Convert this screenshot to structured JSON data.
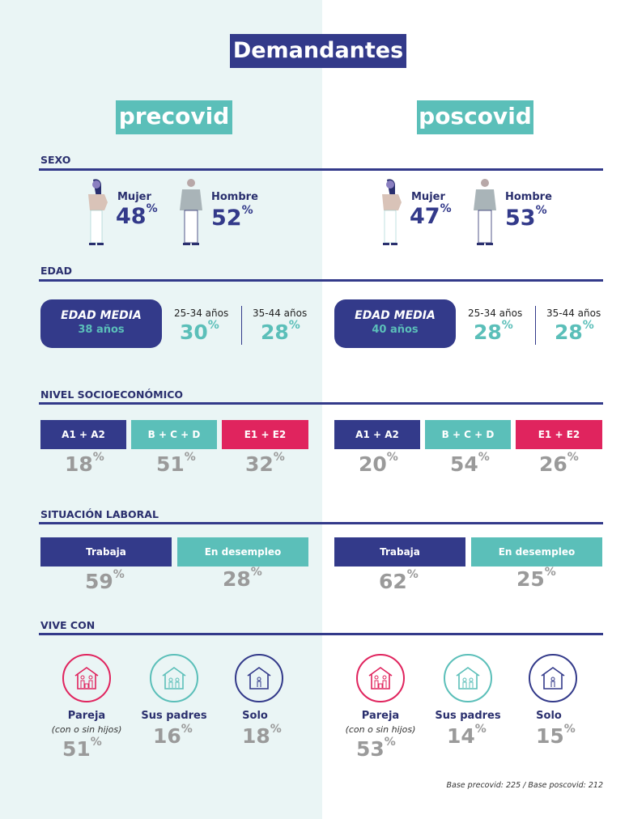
{
  "title": "Demandantes",
  "sections": {
    "sexo": "SEXO",
    "edad": "EDAD",
    "nse": "NIVEL SOCIOECONÓMICO",
    "laboral": "SITUACIÓN LABORAL",
    "vive": "VIVE CON"
  },
  "colors": {
    "navy": "#333a8a",
    "teal": "#5bbfb9",
    "pink": "#e0245e",
    "gray": "#9a9a9a",
    "bg_left": "#eaf5f5"
  },
  "labels": {
    "mujer": "Mujer",
    "hombre": "Hombre",
    "edad_media": "EDAD MEDIA",
    "age1": "25-34 años",
    "age2": "35-44 años",
    "nse1": "A1 + A2",
    "nse2": "B + C + D",
    "nse3": "E1 + E2",
    "trabaja": "Trabaja",
    "desempleo": "En desempleo",
    "pareja": "Pareja",
    "pareja_sub": "(con o sin hijos)",
    "padres": "Sus padres",
    "solo": "Solo",
    "pct": "%"
  },
  "panels": [
    {
      "name": "precovid",
      "mujer": "48",
      "hombre": "52",
      "edad_media": "38 años",
      "age1": "30",
      "age2": "28",
      "nse": [
        "18",
        "51",
        "32"
      ],
      "laboral": [
        "59",
        "28"
      ],
      "vive": [
        "51",
        "16",
        "18"
      ]
    },
    {
      "name": "poscovid",
      "mujer": "47",
      "hombre": "53",
      "edad_media": "40 años",
      "age1": "28",
      "age2": "28",
      "nse": [
        "20",
        "54",
        "26"
      ],
      "laboral": [
        "62",
        "25"
      ],
      "vive": [
        "53",
        "14",
        "15"
      ]
    }
  ],
  "footnote": "Base precovid: 225 / Base poscovid: 212"
}
